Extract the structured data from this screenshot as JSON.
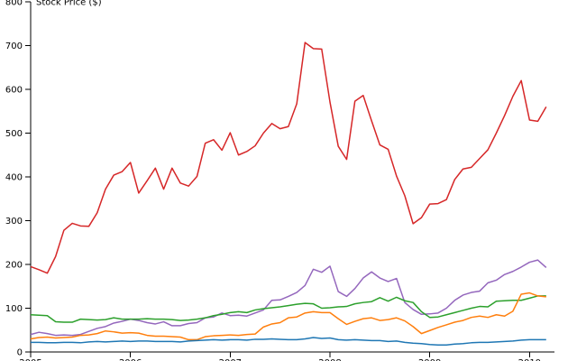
{
  "chart_data": {
    "type": "line",
    "title": "",
    "xlabel": "",
    "ylabel": "Stock Price ($)",
    "ylim": [
      0,
      800
    ],
    "xlim": [
      2005.0,
      2010.25
    ],
    "y_ticks": [
      0,
      100,
      200,
      300,
      400,
      500,
      600,
      700,
      800
    ],
    "x_ticks": [
      2005,
      2006,
      2007,
      2008,
      2009,
      2010
    ],
    "x_tick_labels": [
      "2005",
      "2006",
      "2007",
      "2008",
      "2009",
      "2010"
    ],
    "grid": false,
    "legend": "none",
    "x": [
      2005.0,
      2005.083,
      2005.167,
      2005.25,
      2005.333,
      2005.417,
      2005.5,
      2005.583,
      2005.667,
      2005.75,
      2005.833,
      2005.917,
      2006.0,
      2006.083,
      2006.167,
      2006.25,
      2006.333,
      2006.417,
      2006.5,
      2006.583,
      2006.667,
      2006.75,
      2006.833,
      2006.917,
      2007.0,
      2007.083,
      2007.167,
      2007.25,
      2007.333,
      2007.417,
      2007.5,
      2007.583,
      2007.667,
      2007.75,
      2007.833,
      2007.917,
      2008.0,
      2008.083,
      2008.167,
      2008.25,
      2008.333,
      2008.417,
      2008.5,
      2008.583,
      2008.667,
      2008.75,
      2008.833,
      2008.917,
      2009.0,
      2009.083,
      2009.167,
      2009.25,
      2009.333,
      2009.417,
      2009.5,
      2009.583,
      2009.667,
      2009.75,
      2009.833,
      2009.917,
      2010.0,
      2010.083,
      2010.167
    ],
    "series": [
      {
        "color": "#d62728",
        "values": [
          195,
          188,
          180,
          218,
          278,
          294,
          288,
          287,
          318,
          372,
          404,
          412,
          433,
          363,
          391,
          420,
          372,
          420,
          386,
          379,
          401,
          477,
          485,
          461,
          501,
          450,
          458,
          471,
          500,
          522,
          510,
          515,
          567,
          707,
          693,
          692,
          571,
          470,
          440,
          573,
          586,
          528,
          473,
          463,
          402,
          357,
          293,
          307,
          338,
          339,
          348,
          394,
          418,
          422,
          442,
          462,
          500,
          540,
          584,
          620,
          530,
          527,
          560
        ]
      },
      {
        "color": "#9467bd",
        "values": [
          40,
          45,
          42,
          38,
          39,
          38,
          40,
          47,
          54,
          58,
          66,
          70,
          75,
          72,
          67,
          64,
          69,
          60,
          60,
          65,
          67,
          78,
          80,
          89,
          83,
          84,
          82,
          89,
          96,
          118,
          119,
          127,
          136,
          152,
          189,
          182,
          196,
          138,
          127,
          145,
          169,
          183,
          169,
          161,
          168,
          113,
          97,
          86,
          87,
          89,
          100,
          118,
          130,
          136,
          139,
          158,
          164,
          177,
          184,
          194,
          205,
          210,
          193
        ]
      },
      {
        "color": "#2ca02c",
        "values": [
          85,
          84,
          83,
          69,
          68,
          68,
          75,
          74,
          73,
          74,
          78,
          75,
          75,
          75,
          76,
          75,
          75,
          74,
          72,
          73,
          75,
          78,
          83,
          86,
          90,
          92,
          90,
          96,
          99,
          101,
          103,
          106,
          109,
          111,
          110,
          100,
          101,
          103,
          104,
          110,
          113,
          115,
          124,
          116,
          125,
          117,
          113,
          92,
          79,
          80,
          85,
          90,
          95,
          100,
          104,
          103,
          116,
          117,
          118,
          118,
          123,
          128,
          128
        ]
      },
      {
        "color": "#ff7f0e",
        "values": [
          30,
          33,
          34,
          32,
          33,
          34,
          38,
          39,
          42,
          48,
          46,
          43,
          44,
          43,
          38,
          36,
          36,
          35,
          34,
          28,
          28,
          35,
          37,
          38,
          39,
          38,
          40,
          41,
          57,
          64,
          67,
          78,
          80,
          89,
          92,
          90,
          90,
          76,
          63,
          70,
          76,
          78,
          72,
          74,
          78,
          71,
          58,
          42,
          49,
          56,
          62,
          68,
          72,
          79,
          82,
          79,
          85,
          82,
          93,
          132,
          135,
          128,
          126
        ]
      },
      {
        "color": "#1f77b4",
        "values": [
          22,
          22,
          21,
          21,
          22,
          22,
          21,
          23,
          24,
          23,
          24,
          25,
          24,
          25,
          25,
          24,
          24,
          24,
          23,
          25,
          26,
          27,
          28,
          27,
          28,
          28,
          27,
          29,
          29,
          30,
          29,
          28,
          28,
          30,
          33,
          31,
          32,
          28,
          27,
          28,
          27,
          26,
          26,
          24,
          25,
          22,
          20,
          19,
          17,
          16,
          16,
          18,
          19,
          21,
          22,
          22,
          23,
          24,
          25,
          27,
          28,
          28,
          28
        ]
      }
    ]
  }
}
